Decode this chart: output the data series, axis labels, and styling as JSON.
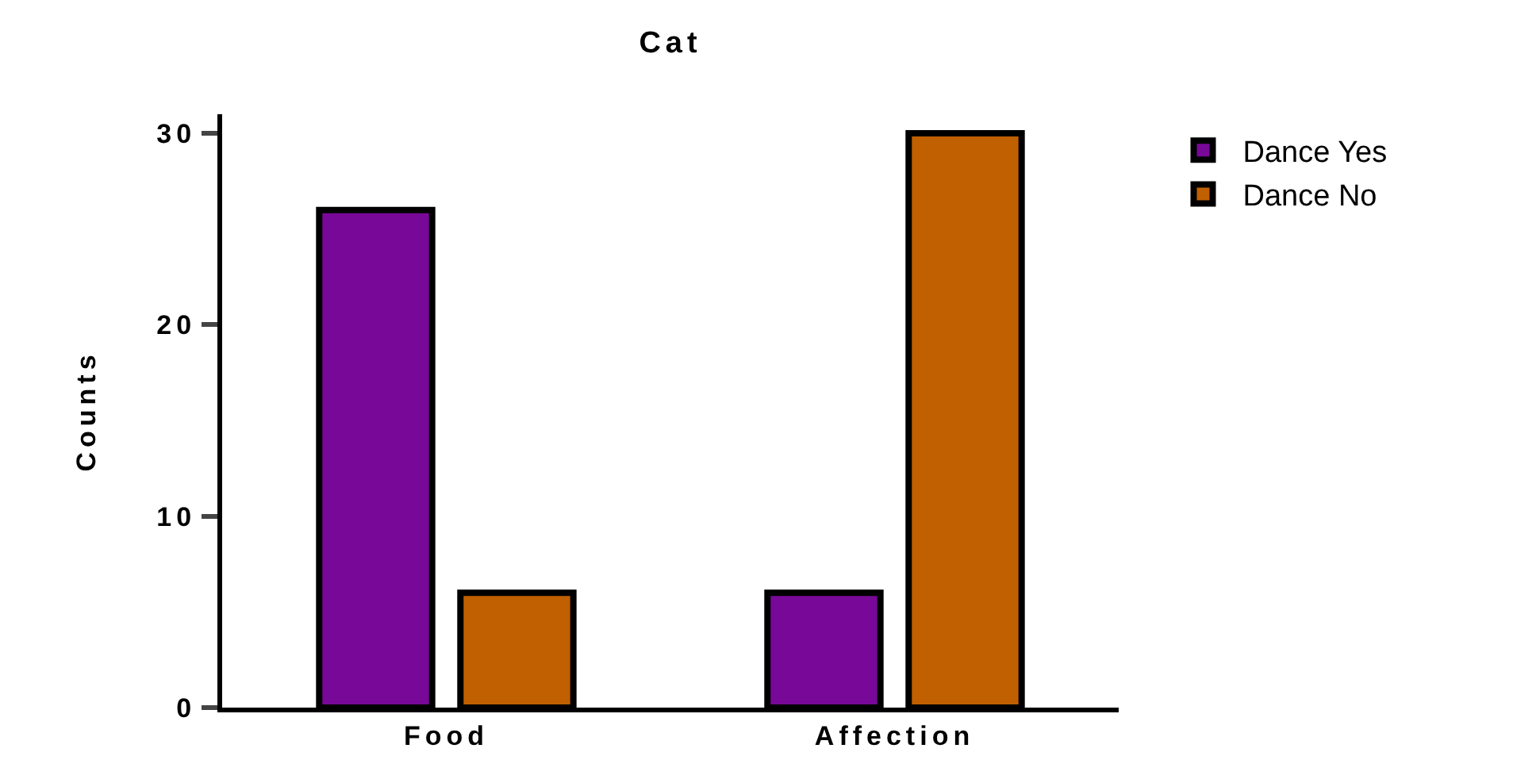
{
  "chart_data": {
    "type": "bar",
    "title": "Cat",
    "ylabel": "Counts",
    "categories": [
      "Food",
      "Affection"
    ],
    "series": [
      {
        "name": "Dance Yes",
        "color": "#780898",
        "values": [
          26,
          6
        ]
      },
      {
        "name": "Dance No",
        "color": "#c06000",
        "values": [
          6,
          30
        ]
      }
    ],
    "ylim": [
      0,
      31
    ],
    "yticks": [
      0,
      10,
      20,
      30
    ],
    "grid": false,
    "legend": "top right"
  }
}
